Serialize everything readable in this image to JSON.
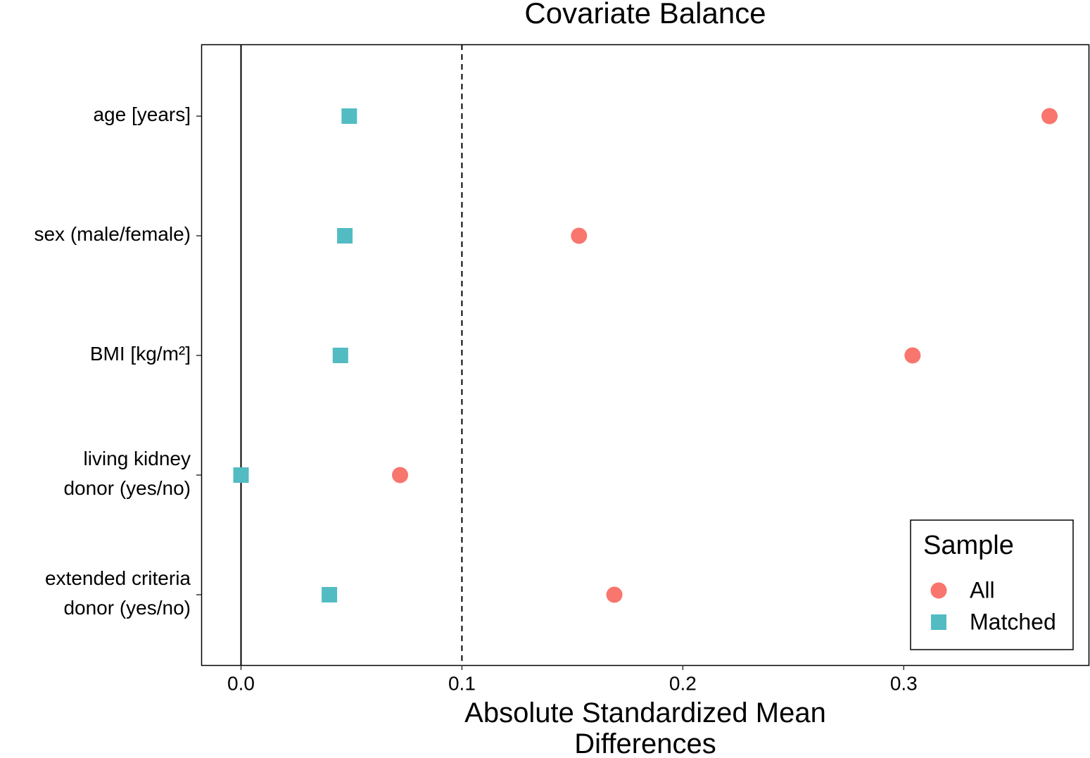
{
  "chart_data": {
    "type": "dot",
    "title": "Covariate Balance",
    "xlabel": [
      "Absolute Standardized Mean",
      "Differences"
    ],
    "categories": [
      [
        "age [years]"
      ],
      [
        "sex (male/female)"
      ],
      [
        "BMI [kg/m²]"
      ],
      [
        "living kidney",
        "donor (yes/no)"
      ],
      [
        "extended criteria",
        "donor (yes/no)"
      ]
    ],
    "series": [
      {
        "name": "All",
        "color": "#f8766d",
        "shape": "circle",
        "values": [
          0.366,
          0.153,
          0.304,
          0.072,
          0.169
        ]
      },
      {
        "name": "Matched",
        "color": "#52bcc2",
        "shape": "square",
        "values": [
          0.049,
          0.047,
          0.045,
          0,
          0.04
        ]
      }
    ],
    "xlim": [
      -0.018,
      0.384
    ],
    "xticks": [
      {
        "value": 0,
        "label": "0.0"
      },
      0.1,
      0.2,
      0.3
    ],
    "threshold": 0.1,
    "legend_title": "Sample",
    "legend": "bottom-right",
    "grid": false
  }
}
